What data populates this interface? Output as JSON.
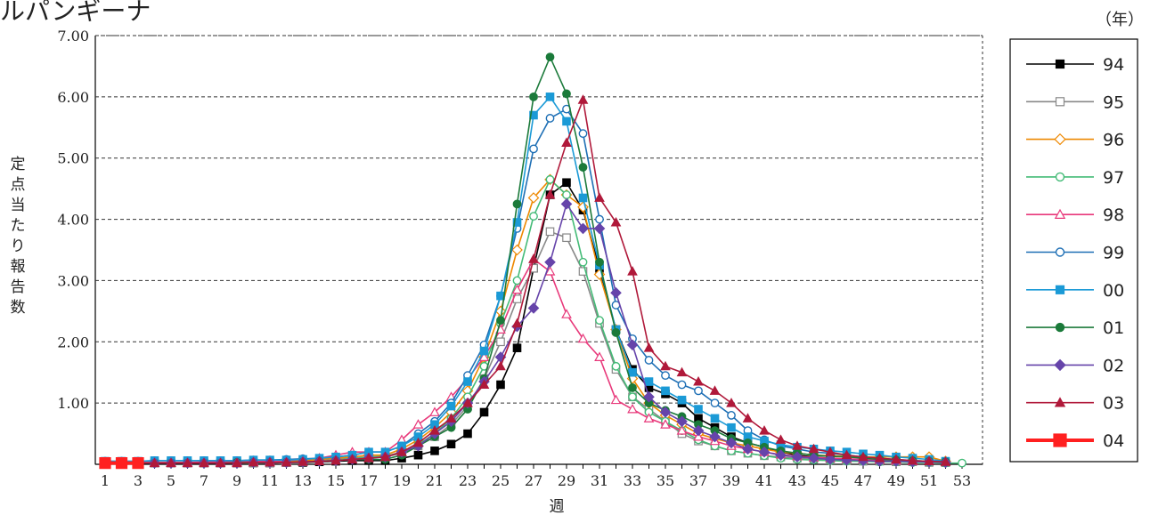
{
  "title": "ルパンギーナ",
  "unit_label": "（年）",
  "chart_data": {
    "type": "line",
    "title": "ルパンギーナ",
    "xlabel": "週",
    "ylabel": "定点当たり報告数",
    "xlim": [
      1,
      53
    ],
    "ylim": [
      0,
      7
    ],
    "grid": "horizontal-dashed",
    "legend_placement": "right",
    "y_ticks": [
      "1.00",
      "2.00",
      "3.00",
      "4.00",
      "5.00",
      "6.00",
      "7.00"
    ],
    "x_ticks": [
      "1",
      "3",
      "5",
      "7",
      "9",
      "11",
      "13",
      "15",
      "17",
      "19",
      "21",
      "23",
      "25",
      "27",
      "29",
      "31",
      "33",
      "35",
      "37",
      "39",
      "41",
      "43",
      "45",
      "47",
      "49",
      "51",
      "53"
    ],
    "series": [
      {
        "name": "94",
        "color": "#000000",
        "marker": "square-filled",
        "values": [
          0.02,
          0.02,
          0.02,
          0.02,
          0.02,
          0.02,
          0.02,
          0.02,
          0.02,
          0.02,
          0.02,
          0.03,
          0.03,
          0.04,
          0.05,
          0.06,
          0.06,
          0.06,
          0.1,
          0.15,
          0.22,
          0.33,
          0.5,
          0.85,
          1.3,
          1.9,
          3.2,
          4.4,
          4.6,
          4.15,
          3.2,
          2.2,
          1.55,
          1.25,
          1.15,
          1.0,
          0.75,
          0.6,
          0.45,
          0.35,
          0.28,
          0.2,
          0.15,
          0.12,
          0.1,
          0.08,
          0.07,
          0.06,
          0.05,
          0.05,
          0.04,
          0.03
        ]
      },
      {
        "name": "95",
        "color": "#888888",
        "marker": "square-open",
        "values": [
          0.02,
          0.02,
          0.02,
          0.02,
          0.02,
          0.02,
          0.02,
          0.02,
          0.02,
          0.02,
          0.02,
          0.03,
          0.04,
          0.06,
          0.08,
          0.1,
          0.12,
          0.12,
          0.18,
          0.3,
          0.45,
          0.65,
          0.95,
          1.4,
          2.0,
          2.7,
          3.2,
          3.8,
          3.7,
          3.15,
          2.3,
          1.55,
          1.1,
          0.9,
          0.7,
          0.5,
          0.38,
          0.3,
          0.22,
          0.18,
          0.14,
          0.12,
          0.1,
          0.08,
          0.07,
          0.06,
          0.05,
          0.05,
          0.04,
          0.04,
          0.03,
          0.03
        ]
      },
      {
        "name": "96",
        "color": "#ee8800",
        "marker": "diamond-open",
        "values": [
          0.03,
          0.03,
          0.03,
          0.03,
          0.03,
          0.03,
          0.03,
          0.03,
          0.04,
          0.04,
          0.04,
          0.05,
          0.06,
          0.08,
          0.1,
          0.12,
          0.15,
          0.15,
          0.25,
          0.4,
          0.6,
          0.85,
          1.2,
          1.75,
          2.5,
          3.5,
          4.35,
          4.65,
          4.4,
          4.2,
          3.1,
          2.2,
          1.4,
          1.0,
          0.8,
          0.65,
          0.5,
          0.42,
          0.35,
          0.3,
          0.25,
          0.2,
          0.18,
          0.15,
          0.14,
          0.13,
          0.12,
          0.12,
          0.12,
          0.12,
          0.12,
          0.05
        ]
      },
      {
        "name": "97",
        "color": "#44bb77",
        "marker": "circle-open",
        "values": [
          0.02,
          0.02,
          0.02,
          0.02,
          0.02,
          0.02,
          0.02,
          0.02,
          0.02,
          0.02,
          0.03,
          0.03,
          0.04,
          0.05,
          0.07,
          0.09,
          0.12,
          0.13,
          0.2,
          0.32,
          0.5,
          0.75,
          1.1,
          1.6,
          2.3,
          3.0,
          4.05,
          4.65,
          4.4,
          3.3,
          2.35,
          1.6,
          1.1,
          0.85,
          0.7,
          0.55,
          0.4,
          0.3,
          0.22,
          0.18,
          0.14,
          0.1,
          0.08,
          0.07,
          0.06,
          0.05,
          0.05,
          0.04,
          0.04,
          0.03,
          0.03,
          0.02,
          0.02
        ]
      },
      {
        "name": "98",
        "color": "#e8387a",
        "marker": "triangle-open",
        "values": [
          0.03,
          0.03,
          0.03,
          0.03,
          0.03,
          0.03,
          0.04,
          0.04,
          0.04,
          0.05,
          0.05,
          0.06,
          0.08,
          0.1,
          0.15,
          0.2,
          0.2,
          0.2,
          0.4,
          0.65,
          0.85,
          1.1,
          1.4,
          1.75,
          2.2,
          2.85,
          3.35,
          3.15,
          2.45,
          2.05,
          1.75,
          1.05,
          0.9,
          0.75,
          0.65,
          0.55,
          0.45,
          0.38,
          0.3,
          0.25,
          0.2,
          0.16,
          0.13,
          0.11,
          0.1,
          0.09,
          0.08,
          0.07,
          0.06,
          0.05,
          0.05,
          0.04
        ]
      },
      {
        "name": "99",
        "color": "#1e6fb5",
        "marker": "circle-open",
        "values": [
          0.05,
          0.05,
          0.05,
          0.06,
          0.06,
          0.06,
          0.06,
          0.06,
          0.06,
          0.07,
          0.07,
          0.08,
          0.09,
          0.1,
          0.12,
          0.15,
          0.2,
          0.2,
          0.3,
          0.5,
          0.7,
          1.0,
          1.45,
          1.95,
          2.75,
          3.85,
          5.15,
          5.65,
          5.8,
          5.4,
          4.0,
          2.6,
          2.05,
          1.7,
          1.45,
          1.3,
          1.2,
          1.0,
          0.8,
          0.55,
          0.4,
          0.3,
          0.25,
          0.2,
          0.18,
          0.15,
          0.12,
          0.1,
          0.08,
          0.06,
          0.05,
          0.04
        ]
      },
      {
        "name": "00",
        "color": "#1b9ad6",
        "marker": "square-filled",
        "values": [
          0.05,
          0.05,
          0.05,
          0.06,
          0.06,
          0.06,
          0.06,
          0.06,
          0.06,
          0.07,
          0.07,
          0.07,
          0.08,
          0.1,
          0.12,
          0.15,
          0.2,
          0.2,
          0.3,
          0.45,
          0.65,
          0.95,
          1.35,
          1.85,
          2.75,
          3.95,
          5.7,
          6.0,
          5.6,
          4.35,
          3.25,
          2.2,
          1.5,
          1.35,
          1.2,
          1.05,
          0.9,
          0.75,
          0.6,
          0.45,
          0.38,
          0.32,
          0.28,
          0.25,
          0.22,
          0.2,
          0.17,
          0.15,
          0.12,
          0.1,
          0.08,
          0.05
        ]
      },
      {
        "name": "01",
        "color": "#1b7a3a",
        "marker": "circle-filled",
        "values": [
          0.02,
          0.02,
          0.02,
          0.02,
          0.02,
          0.02,
          0.02,
          0.02,
          0.03,
          0.03,
          0.03,
          0.03,
          0.04,
          0.05,
          0.06,
          0.08,
          0.08,
          0.08,
          0.15,
          0.3,
          0.45,
          0.6,
          0.9,
          1.4,
          2.35,
          4.25,
          6.0,
          6.65,
          6.05,
          4.85,
          3.3,
          2.15,
          1.25,
          1.0,
          0.88,
          0.78,
          0.65,
          0.55,
          0.42,
          0.35,
          0.28,
          0.22,
          0.18,
          0.15,
          0.13,
          0.12,
          0.1,
          0.08,
          0.07,
          0.06,
          0.05,
          0.04
        ]
      },
      {
        "name": "02",
        "color": "#6644aa",
        "marker": "diamond-filled",
        "values": [
          0.02,
          0.02,
          0.02,
          0.02,
          0.02,
          0.02,
          0.02,
          0.02,
          0.02,
          0.03,
          0.03,
          0.03,
          0.04,
          0.05,
          0.06,
          0.08,
          0.1,
          0.12,
          0.2,
          0.3,
          0.5,
          0.7,
          1.0,
          1.35,
          1.75,
          2.25,
          2.55,
          3.3,
          4.25,
          3.85,
          3.85,
          2.8,
          1.95,
          1.1,
          0.85,
          0.7,
          0.55,
          0.45,
          0.35,
          0.25,
          0.2,
          0.15,
          0.12,
          0.1,
          0.08,
          0.07,
          0.06,
          0.05,
          0.05,
          0.04,
          0.04,
          0.03
        ]
      },
      {
        "name": "03",
        "color": "#b0193a",
        "marker": "triangle-filled",
        "values": [
          0.02,
          0.02,
          0.02,
          0.02,
          0.02,
          0.02,
          0.02,
          0.02,
          0.02,
          0.03,
          0.03,
          0.03,
          0.04,
          0.05,
          0.06,
          0.08,
          0.1,
          0.12,
          0.2,
          0.35,
          0.55,
          0.75,
          1.0,
          1.3,
          1.6,
          2.3,
          3.35,
          4.4,
          5.25,
          5.95,
          4.35,
          3.95,
          3.15,
          1.9,
          1.6,
          1.5,
          1.35,
          1.2,
          1.0,
          0.75,
          0.55,
          0.4,
          0.3,
          0.25,
          0.2,
          0.15,
          0.12,
          0.1,
          0.08,
          0.06,
          0.05,
          0.04
        ]
      },
      {
        "name": "04",
        "color": "#ff2020",
        "marker": "square-filled",
        "bold": true,
        "values": [
          0.02,
          0.02,
          0.02
        ]
      }
    ]
  }
}
